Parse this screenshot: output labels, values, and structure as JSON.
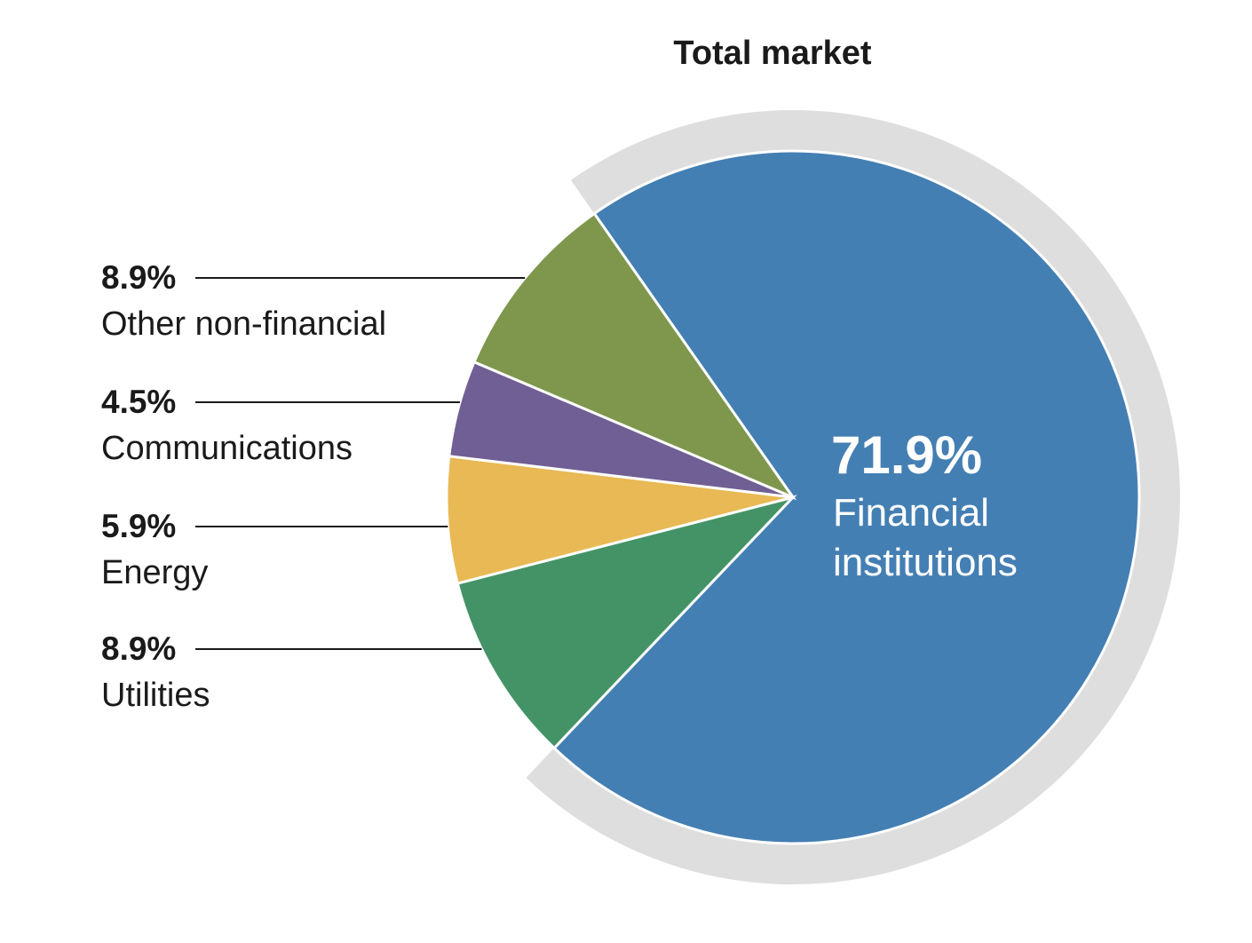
{
  "chart_data": {
    "type": "pie",
    "title": "Total market",
    "categories": [
      "Financial institutions",
      "Utilities",
      "Energy",
      "Communications",
      "Other non-financial"
    ],
    "values": [
      71.9,
      8.9,
      5.9,
      4.5,
      8.9
    ],
    "value_labels": [
      "71.9%",
      "8.9%",
      "5.9%",
      "4.5%",
      "8.9%"
    ],
    "colors": [
      "#447fb3",
      "#449367",
      "#e8b954",
      "#705f94",
      "#7e974d"
    ],
    "highlight_color": "#dedede"
  }
}
